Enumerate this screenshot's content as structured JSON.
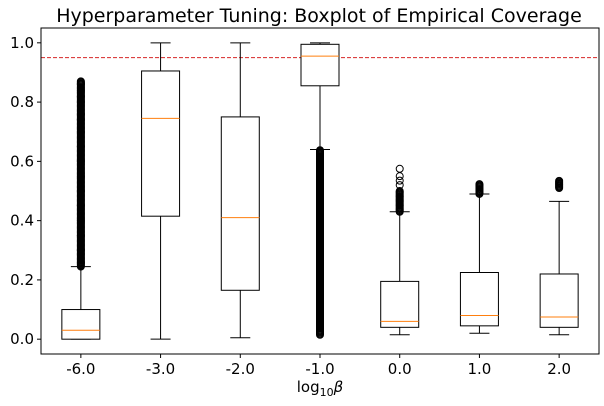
{
  "chart_data": {
    "type": "boxplot",
    "title": "Hyperparameter Tuning: Boxplot of Empirical Coverage",
    "xlabel": "log10β",
    "ylabel": "",
    "ylim": [
      -0.05,
      1.05
    ],
    "yticks": [
      0.0,
      0.2,
      0.4,
      0.6,
      0.8,
      1.0
    ],
    "ytick_labels": [
      "0.0",
      "0.2",
      "0.4",
      "0.6",
      "0.8",
      "1.0"
    ],
    "categories": [
      "-6.0",
      "-3.0",
      "-2.0",
      "-1.0",
      "0.0",
      "1.0",
      "2.0"
    ],
    "reference_line": {
      "y": 0.95,
      "color": "#d62728",
      "style": "dashed"
    },
    "box_color": "#000000",
    "median_color": "#ff7f0e",
    "boxes": [
      {
        "category": "-6.0",
        "whisker_low": 0.0,
        "q1": 0.0,
        "median": 0.03,
        "q3": 0.1,
        "whisker_high": 0.245,
        "fliers_range": [
          0.245,
          0.87
        ],
        "fliers": [
          0.26,
          0.3,
          0.35,
          0.4,
          0.45,
          0.5,
          0.55,
          0.6,
          0.65,
          0.7,
          0.74,
          0.76,
          0.8,
          0.82,
          0.84,
          0.86,
          0.87
        ]
      },
      {
        "category": "-3.0",
        "whisker_low": 0.0,
        "q1": 0.415,
        "median": 0.745,
        "q3": 0.905,
        "whisker_high": 1.0,
        "fliers_range": null,
        "fliers": []
      },
      {
        "category": "-2.0",
        "whisker_low": 0.005,
        "q1": 0.165,
        "median": 0.41,
        "q3": 0.75,
        "whisker_high": 1.0,
        "fliers_range": null,
        "fliers": []
      },
      {
        "category": "-1.0",
        "whisker_low": 0.64,
        "q1": 0.855,
        "median": 0.955,
        "q3": 0.995,
        "whisker_high": 1.0,
        "fliers_range": [
          0.015,
          0.64
        ],
        "fliers": []
      },
      {
        "category": "0.0",
        "whisker_low": 0.015,
        "q1": 0.04,
        "median": 0.06,
        "q3": 0.195,
        "whisker_high": 0.43,
        "fliers_range": [
          0.43,
          0.5
        ],
        "fliers": [
          0.52,
          0.535,
          0.55,
          0.575
        ]
      },
      {
        "category": "1.0",
        "whisker_low": 0.02,
        "q1": 0.045,
        "median": 0.08,
        "q3": 0.225,
        "whisker_high": 0.49,
        "fliers_range": [
          0.49,
          0.525
        ],
        "fliers": []
      },
      {
        "category": "2.0",
        "whisker_low": 0.015,
        "q1": 0.04,
        "median": 0.075,
        "q3": 0.22,
        "whisker_high": 0.465,
        "fliers_range": [
          0.51,
          0.535
        ],
        "fliers": []
      }
    ],
    "grid": false,
    "legend": "none"
  }
}
